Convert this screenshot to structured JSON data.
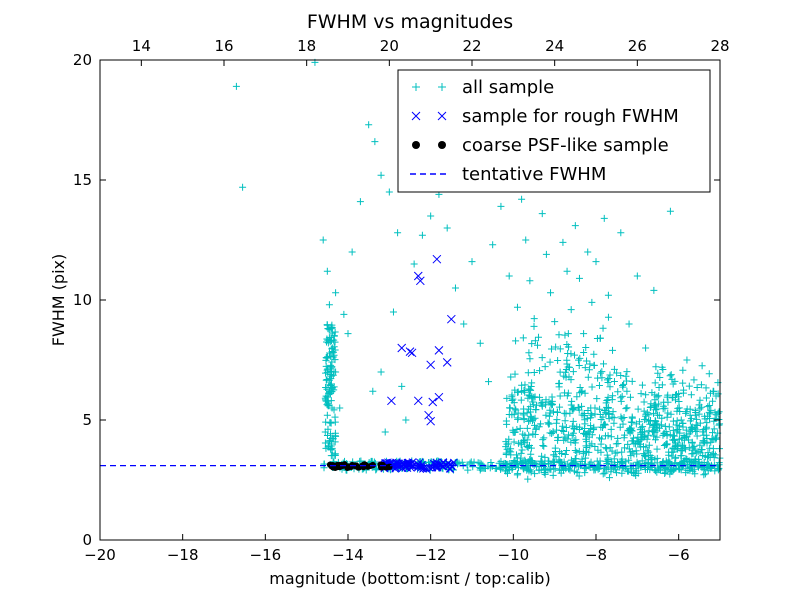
{
  "chart_data": {
    "type": "scatter",
    "title": "FWHM vs magnitudes",
    "xlabel": "magnitude (bottom:isnt / top:calib)",
    "ylabel": "FWHM (pix)",
    "xlim": [
      -20,
      -5
    ],
    "ylim": [
      0,
      20
    ],
    "top_xlim": [
      13,
      28
    ],
    "x_ticks": [
      "−20",
      "−18",
      "−16",
      "−14",
      "−12",
      "−10",
      "−8",
      "−6"
    ],
    "x_tick_values": [
      -20,
      -18,
      -16,
      -14,
      -12,
      -10,
      -8,
      -6
    ],
    "y_ticks": [
      "0",
      "5",
      "10",
      "15",
      "20"
    ],
    "y_tick_values": [
      0,
      5,
      10,
      15,
      20
    ],
    "top_ticks": [
      "14",
      "16",
      "18",
      "20",
      "22",
      "24",
      "26",
      "28"
    ],
    "top_tick_values": [
      14,
      16,
      18,
      20,
      22,
      24,
      26,
      28
    ],
    "legend_position": "top-right",
    "grid": false,
    "series": [
      {
        "name": "all sample",
        "marker": "+",
        "color": "#00bfbf",
        "points": [
          [
            -16.7,
            18.9
          ],
          [
            -16.55,
            14.7
          ],
          [
            -14.8,
            19.9
          ],
          [
            -14.6,
            12.5
          ],
          [
            -14.5,
            11.2
          ],
          [
            -14.45,
            9.8
          ],
          [
            -14.4,
            8.3
          ],
          [
            -14.4,
            6.5
          ],
          [
            -14.5,
            5.2
          ],
          [
            -14.55,
            4.5
          ],
          [
            -14.4,
            4.0
          ],
          [
            -14.3,
            7.0
          ],
          [
            -14.2,
            5.5
          ],
          [
            -14.3,
            10.3
          ],
          [
            -14.1,
            9.4
          ],
          [
            -14.0,
            8.6
          ],
          [
            -13.9,
            12.0
          ],
          [
            -13.7,
            14.1
          ],
          [
            -13.5,
            17.3
          ],
          [
            -13.35,
            16.6
          ],
          [
            -13.2,
            15.2
          ],
          [
            -13.0,
            14.5
          ],
          [
            -12.8,
            12.8
          ],
          [
            -13.4,
            6.2
          ],
          [
            -13.2,
            7.0
          ],
          [
            -13.1,
            4.5
          ],
          [
            -12.9,
            9.5
          ],
          [
            -12.7,
            6.4
          ],
          [
            -12.6,
            5.0
          ],
          [
            -12.4,
            11.5
          ],
          [
            -12.2,
            12.7
          ],
          [
            -12.0,
            13.5
          ],
          [
            -11.8,
            14.4
          ],
          [
            -11.6,
            13.0
          ],
          [
            -11.4,
            10.5
          ],
          [
            -11.2,
            9.0
          ],
          [
            -11.0,
            11.6
          ],
          [
            -10.8,
            8.2
          ],
          [
            -10.6,
            6.6
          ],
          [
            -10.5,
            12.3
          ],
          [
            -10.3,
            13.9
          ],
          [
            -10.1,
            11.0
          ],
          [
            -9.9,
            9.7
          ],
          [
            -9.8,
            14.2
          ],
          [
            -9.7,
            12.5
          ],
          [
            -9.6,
            10.8
          ],
          [
            -9.5,
            8.9
          ],
          [
            -9.4,
            15.0
          ],
          [
            -9.3,
            13.6
          ],
          [
            -9.2,
            11.9
          ],
          [
            -9.1,
            10.3
          ],
          [
            -9.0,
            9.1
          ],
          [
            -8.9,
            14.8
          ],
          [
            -8.8,
            12.4
          ],
          [
            -8.7,
            11.2
          ],
          [
            -8.6,
            9.6
          ],
          [
            -8.5,
            13.1
          ],
          [
            -8.4,
            10.9
          ],
          [
            -8.3,
            8.6
          ],
          [
            -8.2,
            12.0
          ],
          [
            -8.1,
            9.9
          ],
          [
            -8.0,
            11.6
          ],
          [
            -7.9,
            8.4
          ],
          [
            -7.8,
            13.4
          ],
          [
            -7.7,
            10.2
          ],
          [
            -7.6,
            7.9
          ],
          [
            -7.4,
            12.8
          ],
          [
            -7.2,
            9.0
          ],
          [
            -7.0,
            11.0
          ],
          [
            -6.8,
            8.0
          ],
          [
            -6.6,
            10.4
          ],
          [
            -6.4,
            7.2
          ],
          [
            -6.2,
            13.7
          ],
          [
            -6.0,
            6.1
          ],
          [
            -5.8,
            7.5
          ],
          [
            -5.6,
            5.4
          ],
          [
            -5.4,
            4.6
          ],
          [
            -5.1,
            4.2
          ]
        ]
      },
      {
        "name": "sample for rough FWHM",
        "marker": "x",
        "color": "#0000ff",
        "points": [
          [
            -12.3,
            11.0
          ],
          [
            -12.25,
            10.8
          ],
          [
            -11.85,
            11.7
          ],
          [
            -11.5,
            9.2
          ],
          [
            -12.7,
            8.0
          ],
          [
            -12.5,
            7.85
          ],
          [
            -12.45,
            7.8
          ],
          [
            -11.8,
            7.9
          ],
          [
            -11.6,
            7.4
          ],
          [
            -12.0,
            7.3
          ],
          [
            -12.95,
            5.8
          ],
          [
            -12.3,
            5.8
          ],
          [
            -11.95,
            5.75
          ],
          [
            -11.8,
            5.95
          ],
          [
            -12.05,
            5.2
          ],
          [
            -12.0,
            4.95
          ]
        ]
      },
      {
        "name": "coarse PSF-like sample",
        "marker": "o",
        "color": "#000000",
        "points": [
          [
            -14.4,
            3.08
          ],
          [
            -14.2,
            3.12
          ],
          [
            -14.0,
            3.06
          ],
          [
            -13.8,
            3.1
          ],
          [
            -13.6,
            3.08
          ],
          [
            -13.4,
            3.12
          ],
          [
            -13.2,
            3.06
          ],
          [
            -13.0,
            3.05
          ]
        ]
      },
      {
        "name": "tentative FWHM",
        "marker": "--",
        "color": "#0000ff",
        "value": 3.1
      }
    ],
    "band_data": {
      "all_sample_band": [
        -14.6,
        -5.0,
        2.9,
        3.3
      ],
      "rough_band": [
        -13.2,
        -11.4,
        2.95,
        3.25
      ],
      "all_sample_cloud": [
        -10.2,
        -5.0,
        2.5,
        9.5
      ],
      "all_sample_column": [
        -14.55,
        -14.3,
        3.5,
        9.0
      ]
    }
  }
}
